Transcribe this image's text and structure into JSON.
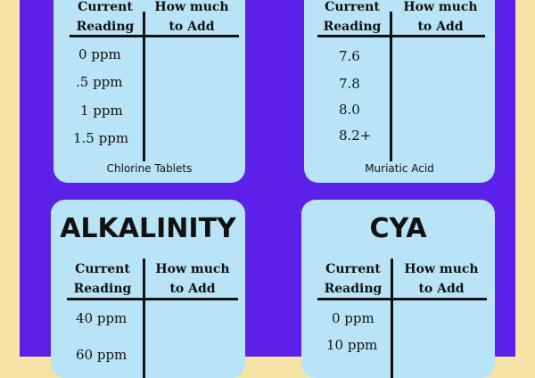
{
  "cards": {
    "chlorine": {
      "col1": [
        "Current",
        "Reading"
      ],
      "col2": [
        "How much",
        "to Add"
      ],
      "readings": [
        "0 ppm",
        ".5 ppm",
        "1 ppm",
        "1.5 ppm"
      ],
      "caption": "Chlorine Tablets"
    },
    "ph": {
      "col1": [
        "Current",
        "Reading"
      ],
      "col2": [
        "How much",
        "to Add"
      ],
      "readings": [
        "7.6",
        "7.8",
        "8.0",
        "8.2+"
      ],
      "caption": "Muriatic Acid"
    },
    "alkalinity": {
      "title": "ALKALINITY",
      "col1": [
        "Current",
        "Reading"
      ],
      "col2": [
        "How much",
        "to Add"
      ],
      "readings": [
        "40 ppm",
        "60 ppm"
      ]
    },
    "cya": {
      "title": "CYA",
      "col1": [
        "Current",
        "Reading"
      ],
      "col2": [
        "How much",
        "to Add"
      ],
      "readings": [
        "0 ppm",
        "10 ppm"
      ]
    }
  }
}
